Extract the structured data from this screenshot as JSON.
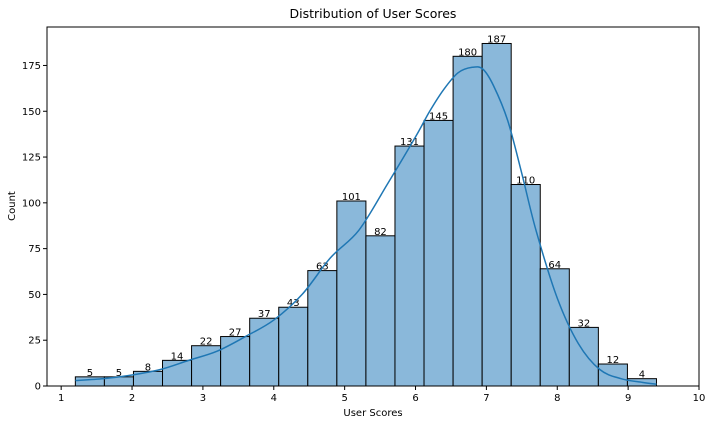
{
  "chart_data": {
    "type": "bar",
    "title": "Distribution of User Scores",
    "xlabel": "User Scores",
    "ylabel": "Count",
    "xlim": [
      0.8,
      10
    ],
    "ylim": [
      0,
      196
    ],
    "xticks": [
      1,
      2,
      3,
      4,
      5,
      6,
      7,
      8,
      9,
      10
    ],
    "yticks": [
      0,
      25,
      50,
      75,
      100,
      125,
      150,
      175
    ],
    "grid": false,
    "legend": "none",
    "bins": {
      "start": 1.2,
      "width": 0.41,
      "counts": [
        5,
        5,
        8,
        14,
        22,
        27,
        37,
        43,
        63,
        101,
        82,
        131,
        145,
        180,
        187,
        110,
        64,
        32,
        12,
        4
      ]
    },
    "kde_curve": {
      "x": [
        1.2,
        1.6,
        2.0,
        2.4,
        2.8,
        3.2,
        3.6,
        4.0,
        4.4,
        4.8,
        5.2,
        5.6,
        6.0,
        6.2,
        6.4,
        6.6,
        6.8,
        6.95,
        7.1,
        7.3,
        7.5,
        7.7,
        8.0,
        8.3,
        8.6,
        8.9,
        9.2,
        9.4
      ],
      "y": [
        3,
        4,
        6,
        9,
        14,
        19,
        27,
        36,
        50,
        70,
        85,
        110,
        136,
        150,
        162,
        171,
        174,
        173,
        164,
        145,
        116,
        85,
        48,
        23,
        9,
        4,
        2,
        1
      ]
    },
    "colors": {
      "bar_fill": "#8ab8da",
      "bar_edge": "#000000",
      "kde_line": "#1f77b4"
    }
  }
}
